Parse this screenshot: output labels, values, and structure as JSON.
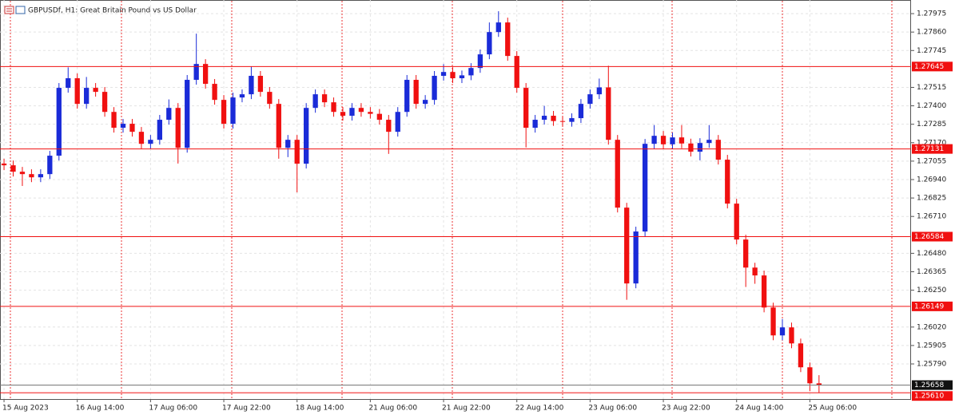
{
  "chart_data": {
    "type": "candlestick",
    "title": "GBPUSDf, H1:  Great Britain Pound vs US Dollar",
    "up_color": "#1a2bd8",
    "down_color": "#f01010",
    "grid": true,
    "open": [
      1.2704,
      1.27029,
      1.26989,
      1.26974,
      1.26954,
      1.26974,
      1.27089,
      1.27512,
      1.27572,
      1.27412,
      1.27512,
      1.27487,
      1.27362,
      1.27263,
      1.27288,
      1.27238,
      1.27163,
      1.27188,
      1.27313,
      1.27387,
      1.27138,
      1.27562,
      1.27661,
      1.27537,
      1.27437,
      1.27288,
      1.27452,
      1.27472,
      1.27587,
      1.27487,
      1.27412,
      1.27138,
      1.27188,
      1.27039,
      1.27387,
      1.27472,
      1.27422,
      1.27362,
      1.27338,
      1.27387,
      1.27362,
      1.2735,
      1.27313,
      1.27238,
      1.27362,
      1.27562,
      1.27412,
      1.27437,
      1.27587,
      1.27611,
      1.27572,
      1.2759,
      1.27636,
      1.27721,
      1.2786,
      1.2792,
      1.27711,
      1.27512,
      1.27263,
      1.27313,
      1.27338,
      1.27305,
      1.273,
      1.27323,
      1.27412,
      1.27472,
      1.27515,
      1.27188,
      1.26765,
      1.26292,
      1.26616,
      1.27163,
      1.27213,
      1.2716,
      1.27203,
      1.27165,
      1.27114,
      1.27168,
      1.27188,
      1.27064,
      1.2679,
      1.26566,
      1.26391,
      1.26342,
      1.26142,
      1.25968,
      1.26018,
      1.25918,
      1.25769,
      1.25669
    ],
    "high": [
      1.2707,
      1.27059,
      1.27019,
      1.27004,
      1.27004,
      1.27119,
      1.27542,
      1.2764,
      1.27602,
      1.2758,
      1.27542,
      1.27517,
      1.27392,
      1.27318,
      1.27318,
      1.27268,
      1.27218,
      1.27343,
      1.2744,
      1.27417,
      1.27592,
      1.2785,
      1.27691,
      1.27567,
      1.27467,
      1.27482,
      1.27502,
      1.27645,
      1.27617,
      1.27517,
      1.27442,
      1.27218,
      1.27218,
      1.27417,
      1.27502,
      1.27502,
      1.27452,
      1.27392,
      1.27417,
      1.27417,
      1.27392,
      1.2738,
      1.27343,
      1.27392,
      1.27592,
      1.27592,
      1.27467,
      1.27617,
      1.2766,
      1.27641,
      1.2762,
      1.27666,
      1.27751,
      1.2792,
      1.2799,
      1.2795,
      1.27741,
      1.27542,
      1.27343,
      1.274,
      1.27368,
      1.27335,
      1.27353,
      1.27442,
      1.27502,
      1.2757,
      1.2765,
      1.27218,
      1.26795,
      1.26646,
      1.27193,
      1.2728,
      1.27243,
      1.27233,
      1.2728,
      1.27195,
      1.27198,
      1.2728,
      1.27218,
      1.27094,
      1.2682,
      1.26596,
      1.26421,
      1.26372,
      1.26172,
      1.2607,
      1.26048,
      1.25948,
      1.25799,
      1.2572
    ],
    "low": [
      1.26999,
      1.26959,
      1.269,
      1.26924,
      1.26924,
      1.26944,
      1.27059,
      1.27482,
      1.27382,
      1.27382,
      1.27457,
      1.27332,
      1.27233,
      1.27233,
      1.27208,
      1.27133,
      1.27133,
      1.27158,
      1.27283,
      1.2704,
      1.27108,
      1.27532,
      1.27507,
      1.27407,
      1.27258,
      1.27258,
      1.27422,
      1.27442,
      1.27457,
      1.27382,
      1.2707,
      1.2708,
      1.2686,
      1.27009,
      1.27357,
      1.27392,
      1.27332,
      1.27308,
      1.27308,
      1.27332,
      1.2732,
      1.27283,
      1.271,
      1.27208,
      1.27332,
      1.27382,
      1.27382,
      1.27407,
      1.27557,
      1.27542,
      1.27542,
      1.2756,
      1.27606,
      1.27691,
      1.2783,
      1.27681,
      1.27482,
      1.2714,
      1.27233,
      1.27283,
      1.27275,
      1.2727,
      1.2727,
      1.27293,
      1.27382,
      1.27442,
      1.27158,
      1.26735,
      1.2619,
      1.26262,
      1.26586,
      1.27133,
      1.2713,
      1.2713,
      1.27135,
      1.27084,
      1.2706,
      1.27138,
      1.27034,
      1.2676,
      1.26536,
      1.2627,
      1.2629,
      1.26112,
      1.25938,
      1.25938,
      1.25888,
      1.25739,
      1.2562,
      1.2561
    ],
    "close": [
      1.27029,
      1.26989,
      1.26974,
      1.26954,
      1.26974,
      1.27089,
      1.27512,
      1.27572,
      1.27412,
      1.27512,
      1.27487,
      1.27362,
      1.27263,
      1.27288,
      1.27238,
      1.27163,
      1.27188,
      1.27313,
      1.27387,
      1.27138,
      1.27562,
      1.27661,
      1.27537,
      1.27437,
      1.27288,
      1.27452,
      1.27472,
      1.27587,
      1.27487,
      1.27412,
      1.27138,
      1.27188,
      1.27039,
      1.27387,
      1.27472,
      1.27422,
      1.27362,
      1.27338,
      1.27387,
      1.27362,
      1.2735,
      1.27313,
      1.27238,
      1.27362,
      1.27562,
      1.27412,
      1.27437,
      1.27587,
      1.27611,
      1.27572,
      1.2759,
      1.27636,
      1.27721,
      1.2786,
      1.2792,
      1.27711,
      1.27512,
      1.27263,
      1.27313,
      1.27338,
      1.27305,
      1.273,
      1.27323,
      1.27412,
      1.27472,
      1.27515,
      1.27188,
      1.26765,
      1.26292,
      1.26616,
      1.27163,
      1.27213,
      1.2716,
      1.27203,
      1.27165,
      1.27114,
      1.27168,
      1.27188,
      1.27064,
      1.2679,
      1.26566,
      1.26391,
      1.26342,
      1.26142,
      1.25968,
      1.26018,
      1.25918,
      1.25769,
      1.25669,
      1.25658
    ],
    "ylim": [
      1.25571,
      1.2806
    ],
    "yticks": [
      1.27975,
      {
        "value": 1.2786,
        "label": "1.27860"
      },
      1.27745,
      1.27515,
      {
        "value": 1.274,
        "label": "1.27400"
      },
      1.27285,
      {
        "value": 1.2717,
        "label": "1.27170"
      },
      1.27055,
      {
        "value": 1.2694,
        "label": "1.26940"
      },
      1.26825,
      {
        "value": 1.2671,
        "label": "1.26710"
      },
      {
        "value": 1.2648,
        "label": "1.26480"
      },
      1.26365,
      {
        "value": 1.2625,
        "label": "1.26250"
      },
      {
        "value": 1.2602,
        "label": "1.26020"
      },
      1.25905,
      {
        "value": 1.2579,
        "label": "1.25790"
      }
    ],
    "xlim": [
      -0.44,
      99.05
    ],
    "xticks": [
      {
        "value": 0,
        "label": "15 Aug 2023"
      },
      {
        "value": 8,
        "label": "16 Aug 14:00"
      },
      {
        "value": 16,
        "label": "17 Aug 06:00"
      },
      {
        "value": 24,
        "label": "17 Aug 22:00"
      },
      {
        "value": 32,
        "label": "18 Aug 14:00"
      },
      {
        "value": 40,
        "label": "21 Aug 06:00"
      },
      {
        "value": 48,
        "label": "21 Aug 22:00"
      },
      {
        "value": 56,
        "label": "22 Aug 14:00"
      },
      {
        "value": 64,
        "label": "23 Aug 06:00"
      },
      {
        "value": 72,
        "label": "23 Aug 22:00"
      },
      {
        "value": 80,
        "label": "24 Aug 14:00"
      },
      {
        "value": 88,
        "label": "25 Aug 06:00"
      }
    ],
    "levels": [
      1.27645,
      1.27131,
      1.26584,
      1.26149
    ],
    "level_color": "#f01010",
    "bid": 1.25658,
    "ask": {
      "value": 1.2561,
      "label": "1.25610"
    }
  }
}
